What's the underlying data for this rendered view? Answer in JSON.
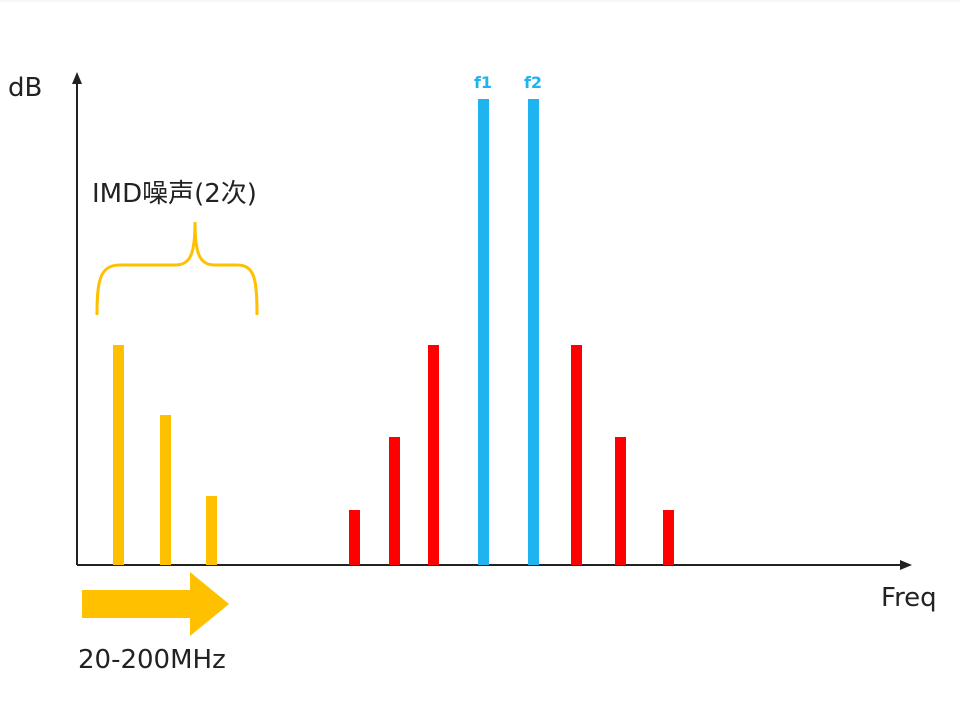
{
  "y_axis_label": "dB",
  "x_axis_label": "Freq",
  "imd_label": "IMD噪声(2次)",
  "range_label": "20-200MHz",
  "tones": [
    "f1",
    "f2"
  ]
}
